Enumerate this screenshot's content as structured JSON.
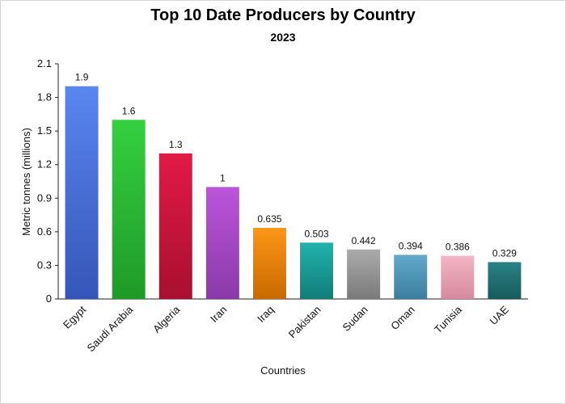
{
  "chart_data": {
    "type": "bar",
    "title": "Top 10 Date Producers by Country",
    "subtitle": "2023",
    "xlabel": "Countries",
    "ylabel": "Metric tonnes (millions)",
    "ylim": [
      0,
      2.1
    ],
    "yticks": [
      "0",
      "0.3",
      "0.6",
      "0.9",
      "1.2",
      "1.5",
      "1.8",
      "2.1"
    ],
    "grid": false,
    "legend": "none",
    "categories": [
      "Egypt",
      "Saudi Arabia",
      "Algeria",
      "Iran",
      "Iraq",
      "Pakistan",
      "Sudan",
      "Oman",
      "Tunisia",
      "UAE"
    ],
    "values": [
      1.9,
      1.6,
      1.3,
      1,
      0.635,
      0.503,
      0.442,
      0.394,
      0.386,
      0.329
    ],
    "value_labels": [
      "1.9",
      "1.6",
      "1.3",
      "1",
      "0.635",
      "0.503",
      "0.442",
      "0.394",
      "0.386",
      "0.329"
    ],
    "colors": [
      [
        "#5a86f0",
        "#3556b8"
      ],
      [
        "#35d040",
        "#1f9a28"
      ],
      [
        "#e21a46",
        "#a80f30"
      ],
      [
        "#bb55da",
        "#8a3aa8"
      ],
      [
        "#fb9618",
        "#c86a00"
      ],
      [
        "#21b3ad",
        "#137d78"
      ],
      [
        "#ababab",
        "#7a7a7a"
      ],
      [
        "#62a9cc",
        "#3d7e9e"
      ],
      [
        "#f2b6c6",
        "#d7899d"
      ],
      [
        "#2a8285",
        "#175a5c"
      ]
    ]
  }
}
